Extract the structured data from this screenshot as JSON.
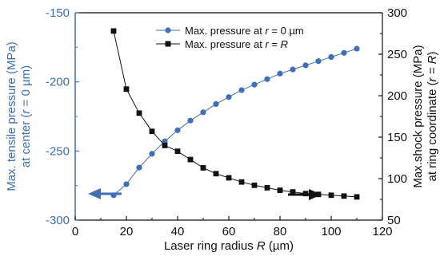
{
  "chart_data": {
    "type": "line",
    "x": [
      15,
      20,
      25,
      30,
      35,
      40,
      45,
      50,
      55,
      60,
      65,
      70,
      75,
      80,
      85,
      90,
      95,
      100,
      105,
      110
    ],
    "series": [
      {
        "name_prefix": "Max. pressure at ",
        "name_var": "r",
        "name_suffix": " = 0 µm",
        "axis": "left",
        "color": "#3f6fb5",
        "marker": "circle",
        "values": [
          -282,
          -274,
          -262,
          -252,
          -243,
          -235,
          -228,
          -222,
          -216,
          -211,
          -206,
          -202,
          -198,
          -194,
          -191,
          -188,
          -185,
          -182,
          -179,
          -176
        ]
      },
      {
        "name_prefix": "Max. pressure at ",
        "name_var": "r",
        "name_mid": " = ",
        "name_var2": "R",
        "name_suffix": "",
        "axis": "right",
        "color": "#111111",
        "marker": "square",
        "values": [
          278,
          208,
          179,
          157,
          140,
          133,
          123,
          113,
          106,
          101,
          96,
          92,
          89,
          86,
          84,
          82,
          81,
          80,
          79,
          78
        ]
      }
    ],
    "xlabel_prefix": "Laser ring radius ",
    "xlabel_var": "R",
    "xlabel_suffix": " (µm)",
    "xlim": [
      0,
      120
    ],
    "xticks": [
      "0",
      "20",
      "40",
      "60",
      "80",
      "100",
      "120"
    ],
    "ylabel_left_line1": "Max. tensile pressure (MPa)",
    "ylabel_left_line2_prefix": "at center (",
    "ylabel_left_line2_var": "r",
    "ylabel_left_line2_suffix": " = 0 µm)",
    "ylim_left": [
      -300,
      -150
    ],
    "yticks_left": [
      "-300",
      "-250",
      "-200",
      "-150"
    ],
    "ylabel_right_line1": "Max.shock pressure (MPa)",
    "ylabel_right_line2_prefix": "at ring coordinate (",
    "ylabel_right_line2_var": "r = R",
    "ylabel_right_line2_suffix": ")",
    "ylim_right": [
      50,
      300
    ],
    "yticks_right": [
      "50",
      "100",
      "150",
      "200",
      "250",
      "300"
    ],
    "legend_position": "top-center",
    "grid": false
  }
}
